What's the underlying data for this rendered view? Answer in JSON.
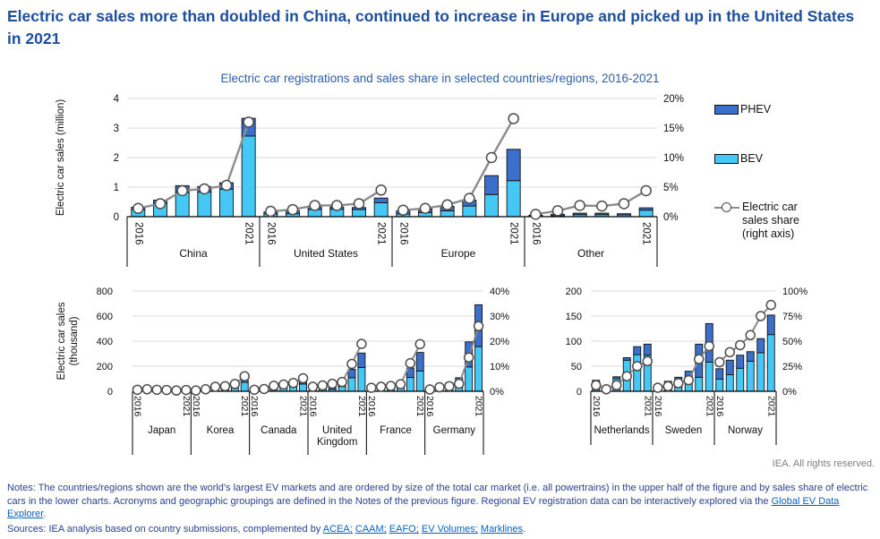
{
  "page": {
    "title": "Electric car sales more than doubled in China, continued to increase in Europe and picked up in the United States in 2021",
    "subtitle": "Electric car registrations and sales share in selected countries/regions, 2016-2021",
    "copyright": "IEA. All rights reserved."
  },
  "legend": {
    "phev_label": "PHEV",
    "bev_label": "BEV",
    "share_lines": [
      "Electric car",
      "sales share",
      "(right axis)"
    ]
  },
  "colors": {
    "bev": "#45c8f5",
    "phev": "#3a70c9",
    "bar_stroke": "#111111",
    "share_line": "#8c8c8c",
    "marker_fill": "#ffffff",
    "marker_stroke": "#4d4d4d",
    "gridline": "#d9d9d9",
    "axis": "#000000",
    "title_blue": "#1d4f9c",
    "subtitle_blue": "#2d5fa6",
    "notes_blue": "#2c4390",
    "link_blue": "#0563c1",
    "copyright_gray": "#7f7f7f"
  },
  "chart_data": [
    {
      "type": "bar",
      "subtype": "stacked-bars-with-share-line",
      "ylabel_lines": [
        "Electric car sales (million)"
      ],
      "left_ticks": [
        0,
        1,
        2,
        3,
        4
      ],
      "left_max": 4,
      "right_ticks": [
        0,
        5,
        10,
        15,
        20
      ],
      "right_max": 20,
      "right_suffix": "%",
      "years": [
        "2016",
        "2017",
        "2018",
        "2019",
        "2020",
        "2021"
      ],
      "year_edge_labels": [
        "2016",
        "2021"
      ],
      "series_names": [
        "BEV",
        "PHEV"
      ],
      "line_name": "Electric car sales share (right axis)",
      "groups": [
        {
          "name": "China",
          "bev": [
            0.24,
            0.45,
            0.82,
            0.83,
            0.93,
            2.73
          ],
          "phev": [
            0.08,
            0.11,
            0.23,
            0.19,
            0.22,
            0.6
          ],
          "share_pct": [
            1.4,
            2.2,
            4.4,
            4.7,
            5.3,
            16.0
          ]
        },
        {
          "name": "United States",
          "bev": [
            0.09,
            0.1,
            0.24,
            0.25,
            0.24,
            0.47
          ],
          "phev": [
            0.07,
            0.1,
            0.12,
            0.08,
            0.07,
            0.16
          ],
          "share_pct": [
            0.9,
            1.2,
            1.9,
            1.9,
            2.2,
            4.5
          ]
        },
        {
          "name": "Europe",
          "bev": [
            0.09,
            0.14,
            0.2,
            0.36,
            0.75,
            1.22
          ],
          "phev": [
            0.11,
            0.12,
            0.15,
            0.2,
            0.64,
            1.06
          ],
          "share_pct": [
            1.1,
            1.4,
            2.0,
            3.1,
            10.0,
            16.6
          ]
        },
        {
          "name": "Other",
          "bev": [
            0.02,
            0.03,
            0.07,
            0.07,
            0.06,
            0.22
          ],
          "phev": [
            0.02,
            0.05,
            0.05,
            0.05,
            0.04,
            0.08
          ],
          "share_pct": [
            0.4,
            1.0,
            1.9,
            1.8,
            2.2,
            4.4
          ]
        }
      ]
    },
    {
      "type": "bar",
      "subtype": "stacked-bars-with-share-line",
      "ylabel_lines": [
        "Electric car sales",
        "(thousand)"
      ],
      "left_ticks": [
        0,
        200,
        400,
        600,
        800
      ],
      "left_max": 800,
      "right_ticks": [
        0,
        10,
        20,
        30,
        40
      ],
      "right_max": 40,
      "right_suffix": "%",
      "years": [
        "2016",
        "2017",
        "2018",
        "2019",
        "2020",
        "2021"
      ],
      "year_edge_labels": [
        "2016",
        "2021"
      ],
      "series_names": [
        "BEV",
        "PHEV"
      ],
      "line_name": "Electric car sales share (right axis)",
      "groups": [
        {
          "name": "Japan",
          "bev": [
            15,
            20,
            17,
            15,
            11,
            16
          ],
          "phev": [
            9,
            16,
            9,
            7,
            4,
            6
          ],
          "share_pct": [
            0.6,
            0.8,
            0.6,
            0.5,
            0.3,
            0.5
          ]
        },
        {
          "name": "Korea",
          "bev": [
            5,
            13,
            30,
            31,
            39,
            71
          ],
          "phev": [
            1,
            1,
            2,
            4,
            7,
            29
          ],
          "share_pct": [
            0.3,
            0.8,
            1.8,
            2.0,
            2.9,
            6.0
          ]
        },
        {
          "name": "Canada",
          "bev": [
            6,
            9,
            23,
            35,
            39,
            58
          ],
          "phev": [
            5,
            9,
            21,
            16,
            12,
            29
          ],
          "share_pct": [
            0.6,
            0.9,
            2.2,
            2.7,
            3.3,
            5.2
          ]
        },
        {
          "name": "United Kingdom",
          "bev": [
            10,
            14,
            16,
            38,
            108,
            190
          ],
          "phev": [
            27,
            33,
            44,
            37,
            67,
            115
          ],
          "share_pct": [
            1.8,
            2.3,
            3.0,
            3.7,
            10.9,
            18.9
          ]
        },
        {
          "name": "France",
          "bev": [
            22,
            26,
            31,
            43,
            110,
            162
          ],
          "phev": [
            7,
            10,
            14,
            18,
            75,
            148
          ],
          "share_pct": [
            1.4,
            1.8,
            2.1,
            2.8,
            11.2,
            18.8
          ]
        },
        {
          "name": "Germany",
          "bev": [
            11,
            25,
            36,
            63,
            194,
            356
          ],
          "phev": [
            14,
            30,
            32,
            45,
            200,
            334
          ],
          "share_pct": [
            0.7,
            1.6,
            2.0,
            3.0,
            13.5,
            26.0
          ]
        }
      ]
    },
    {
      "type": "bar",
      "subtype": "stacked-bars-with-share-line",
      "ylabel_lines": [],
      "left_ticks": [
        0,
        50,
        100,
        150,
        200
      ],
      "left_max": 200,
      "right_ticks": [
        0,
        25,
        50,
        75,
        100
      ],
      "right_max": 100,
      "right_suffix": "%",
      "years": [
        "2016",
        "2017",
        "2018",
        "2019",
        "2020",
        "2021"
      ],
      "year_edge_labels": [
        "2016",
        "2021"
      ],
      "series_names": [
        "BEV",
        "PHEV"
      ],
      "line_name": "Electric car sales share (right axis)",
      "groups": [
        {
          "name": "Netherlands",
          "bev": [
            4,
            9,
            25,
            62,
            73,
            72
          ],
          "phev": [
            18,
            2,
            4,
            5,
            16,
            22
          ],
          "share_pct": [
            6,
            2,
            6,
            15,
            25,
            30
          ]
        },
        {
          "name": "Sweden",
          "bev": [
            3,
            5,
            8,
            16,
            28,
            58
          ],
          "phev": [
            10,
            15,
            20,
            24,
            66,
            77
          ],
          "share_pct": [
            3.5,
            5,
            8,
            11,
            32,
            45
          ]
        },
        {
          "name": "Norway",
          "bev": [
            24,
            33,
            46,
            60,
            77,
            113
          ],
          "phev": [
            21,
            29,
            26,
            19,
            28,
            39
          ],
          "share_pct": [
            29,
            39,
            46,
            56,
            75,
            86
          ]
        }
      ]
    }
  ],
  "notes": {
    "prefix": "Notes: The countries/regions shown are the world's largest EV markets and are ordered by size of the total car market (i.e. all powertrains) in the upper half of the figure and by sales share of electric cars in the lower charts. Acronyms and geographic groupings are defined in the Notes of the previous figure. Regional EV registration data can be interactively explored via the ",
    "link": "Global EV Data Explorer",
    "suffix": "."
  },
  "sources": {
    "prefix": "Sources: IEA analysis based on country submissions, complemented by ",
    "links": [
      "ACEA;",
      "CAAM;",
      "EAFO;",
      "EV Volumes;",
      "Marklines"
    ],
    "suffix": "."
  }
}
